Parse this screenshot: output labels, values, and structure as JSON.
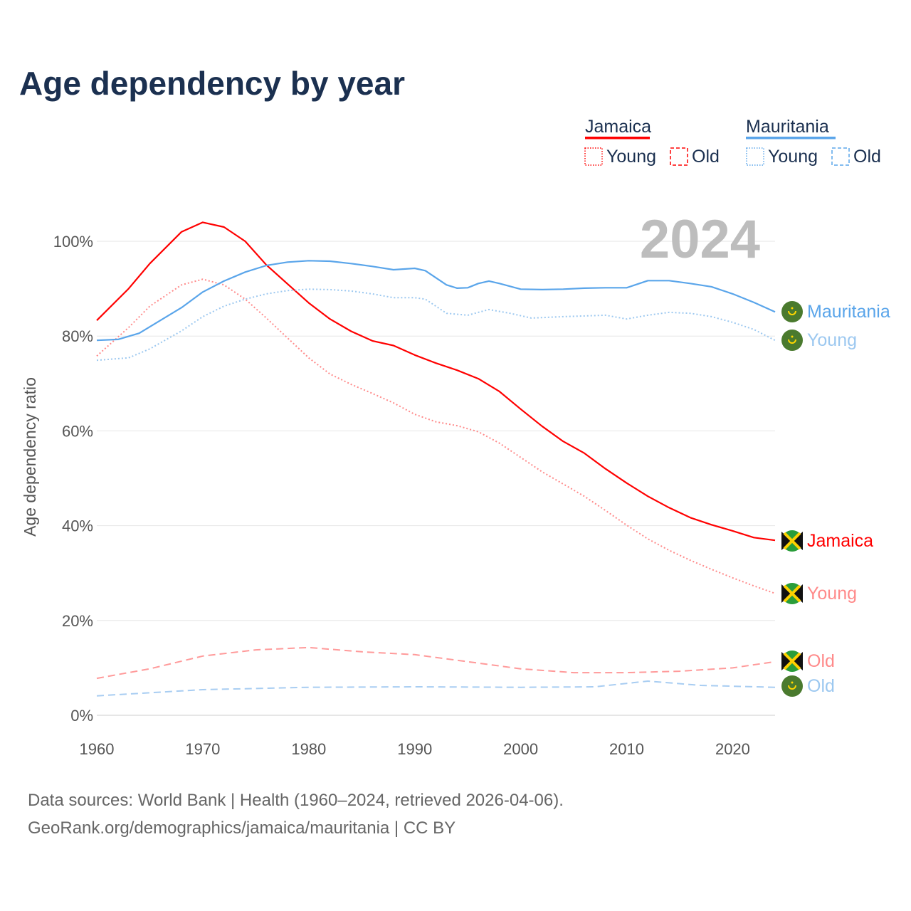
{
  "chart_data": {
    "type": "line",
    "title": "Age dependency by year",
    "xlabel": "",
    "ylabel": "Age dependency ratio",
    "xlim": [
      1960,
      2024
    ],
    "ylim": [
      0,
      105
    ],
    "x_ticks": [
      "1960",
      "1970",
      "1980",
      "1990",
      "2000",
      "2010",
      "2020"
    ],
    "y_ticks": [
      "0%",
      "20%",
      "40%",
      "60%",
      "80%",
      "100%"
    ],
    "grid": true,
    "year_label": "2024",
    "legend": {
      "placement": "top-right",
      "groups": [
        {
          "country": "Jamaica",
          "color": "#ff0000",
          "young": "Young",
          "old": "Old"
        },
        {
          "country": "Mauritania",
          "color": "#5aa5ea",
          "young": "Young",
          "old": "Old"
        }
      ]
    },
    "series": [
      {
        "name": "Jamaica",
        "kind": "total",
        "color": "#ff0000",
        "style": "solid",
        "end_label": "Jamaica",
        "points": [
          [
            1960,
            83.3
          ],
          [
            1963,
            90
          ],
          [
            1965,
            95.3
          ],
          [
            1968,
            102
          ],
          [
            1970,
            104
          ],
          [
            1972,
            103
          ],
          [
            1974,
            100
          ],
          [
            1976,
            95
          ],
          [
            1978,
            91
          ],
          [
            1980,
            87
          ],
          [
            1982,
            83.6
          ],
          [
            1984,
            81
          ],
          [
            1986,
            79
          ],
          [
            1988,
            78
          ],
          [
            1990,
            76
          ],
          [
            1992,
            74.3
          ],
          [
            1994,
            72.8
          ],
          [
            1996,
            71
          ],
          [
            1998,
            68.3
          ],
          [
            2000,
            64.6
          ],
          [
            2002,
            61
          ],
          [
            2004,
            57.8
          ],
          [
            2006,
            55.3
          ],
          [
            2008,
            52
          ],
          [
            2010,
            49
          ],
          [
            2012,
            46.2
          ],
          [
            2014,
            43.8
          ],
          [
            2016,
            41.7
          ],
          [
            2018,
            40.2
          ],
          [
            2020,
            38.9
          ],
          [
            2022,
            37.5
          ],
          [
            2024,
            36.9
          ]
        ]
      },
      {
        "name": "Jamaica Young",
        "kind": "young",
        "color": "#ff8a8a",
        "style": "dotted",
        "end_label": "Young",
        "points": [
          [
            1960,
            75.8
          ],
          [
            1963,
            81.8
          ],
          [
            1965,
            86.3
          ],
          [
            1968,
            90.8
          ],
          [
            1970,
            92
          ],
          [
            1972,
            90.8
          ],
          [
            1974,
            87.8
          ],
          [
            1976,
            83.8
          ],
          [
            1978,
            79.6
          ],
          [
            1980,
            75.4
          ],
          [
            1982,
            72
          ],
          [
            1984,
            69.8
          ],
          [
            1986,
            67.9
          ],
          [
            1988,
            65.9
          ],
          [
            1990,
            63.5
          ],
          [
            1992,
            61.9
          ],
          [
            1994,
            61.1
          ],
          [
            1996,
            59.8
          ],
          [
            1998,
            57.4
          ],
          [
            2000,
            54.4
          ],
          [
            2002,
            51.4
          ],
          [
            2004,
            48.8
          ],
          [
            2006,
            46.2
          ],
          [
            2008,
            43.2
          ],
          [
            2010,
            40.1
          ],
          [
            2012,
            37.2
          ],
          [
            2014,
            34.8
          ],
          [
            2016,
            32.7
          ],
          [
            2018,
            30.8
          ],
          [
            2020,
            29
          ],
          [
            2022,
            27.3
          ],
          [
            2024,
            25.7
          ]
        ]
      },
      {
        "name": "Jamaica Old",
        "kind": "old",
        "color": "#ff9a9a",
        "style": "dashed",
        "end_label": "Old",
        "points": [
          [
            1960,
            7.8
          ],
          [
            1965,
            9.8
          ],
          [
            1970,
            12.5
          ],
          [
            1975,
            13.8
          ],
          [
            1980,
            14.3
          ],
          [
            1985,
            13.4
          ],
          [
            1990,
            12.8
          ],
          [
            1995,
            11.3
          ],
          [
            2000,
            9.8
          ],
          [
            2005,
            9
          ],
          [
            2010,
            9
          ],
          [
            2015,
            9.3
          ],
          [
            2020,
            10
          ],
          [
            2024,
            11.3
          ]
        ]
      },
      {
        "name": "Mauritania",
        "kind": "total",
        "color": "#5aa5ea",
        "style": "solid",
        "end_label": "Mauritania",
        "points": [
          [
            1960,
            79.1
          ],
          [
            1962,
            79.3
          ],
          [
            1964,
            80.6
          ],
          [
            1966,
            83.3
          ],
          [
            1968,
            86
          ],
          [
            1970,
            89.3
          ],
          [
            1972,
            91.6
          ],
          [
            1974,
            93.5
          ],
          [
            1976,
            94.9
          ],
          [
            1978,
            95.6
          ],
          [
            1980,
            95.9
          ],
          [
            1982,
            95.8
          ],
          [
            1984,
            95.3
          ],
          [
            1986,
            94.7
          ],
          [
            1988,
            94
          ],
          [
            1990,
            94.3
          ],
          [
            1991,
            93.8
          ],
          [
            1993,
            90.8
          ],
          [
            1994,
            90.1
          ],
          [
            1995,
            90.2
          ],
          [
            1996,
            91.1
          ],
          [
            1997,
            91.6
          ],
          [
            1998,
            91.1
          ],
          [
            2000,
            89.9
          ],
          [
            2002,
            89.8
          ],
          [
            2004,
            89.9
          ],
          [
            2006,
            90.1
          ],
          [
            2008,
            90.2
          ],
          [
            2010,
            90.2
          ],
          [
            2012,
            91.7
          ],
          [
            2014,
            91.7
          ],
          [
            2016,
            91.1
          ],
          [
            2018,
            90.4
          ],
          [
            2020,
            88.9
          ],
          [
            2022,
            87.1
          ],
          [
            2024,
            85.1
          ]
        ]
      },
      {
        "name": "Mauritania Young",
        "kind": "young",
        "color": "#9cc8f0",
        "style": "dotted",
        "end_label": "Young",
        "points": [
          [
            1960,
            74.9
          ],
          [
            1963,
            75.4
          ],
          [
            1965,
            77.3
          ],
          [
            1968,
            81.1
          ],
          [
            1970,
            84.1
          ],
          [
            1972,
            86.3
          ],
          [
            1974,
            87.8
          ],
          [
            1976,
            88.9
          ],
          [
            1978,
            89.6
          ],
          [
            1980,
            89.9
          ],
          [
            1982,
            89.8
          ],
          [
            1984,
            89.5
          ],
          [
            1986,
            88.9
          ],
          [
            1988,
            88.1
          ],
          [
            1990,
            88.1
          ],
          [
            1991,
            87.8
          ],
          [
            1993,
            84.8
          ],
          [
            1995,
            84.4
          ],
          [
            1997,
            85.6
          ],
          [
            1999,
            84.8
          ],
          [
            2001,
            83.8
          ],
          [
            2004,
            84.1
          ],
          [
            2008,
            84.4
          ],
          [
            2010,
            83.6
          ],
          [
            2012,
            84.4
          ],
          [
            2014,
            85
          ],
          [
            2016,
            84.8
          ],
          [
            2018,
            84.1
          ],
          [
            2020,
            82.9
          ],
          [
            2022,
            81.4
          ],
          [
            2024,
            79.1
          ]
        ]
      },
      {
        "name": "Mauritania Old",
        "kind": "old",
        "color": "#a8cdf2",
        "style": "dashed",
        "end_label": "Old",
        "points": [
          [
            1960,
            4.1
          ],
          [
            1970,
            5.4
          ],
          [
            1980,
            5.9
          ],
          [
            1990,
            6
          ],
          [
            2000,
            5.9
          ],
          [
            2007,
            6
          ],
          [
            2012,
            7.2
          ],
          [
            2017,
            6.3
          ],
          [
            2024,
            5.9
          ]
        ]
      }
    ],
    "source_line1": "Data sources: World Bank | Health (1960–2024, retrieved 2026-04-06).",
    "source_line2": "GeoRank.org/demographics/jamaica/mauritania | CC BY"
  }
}
